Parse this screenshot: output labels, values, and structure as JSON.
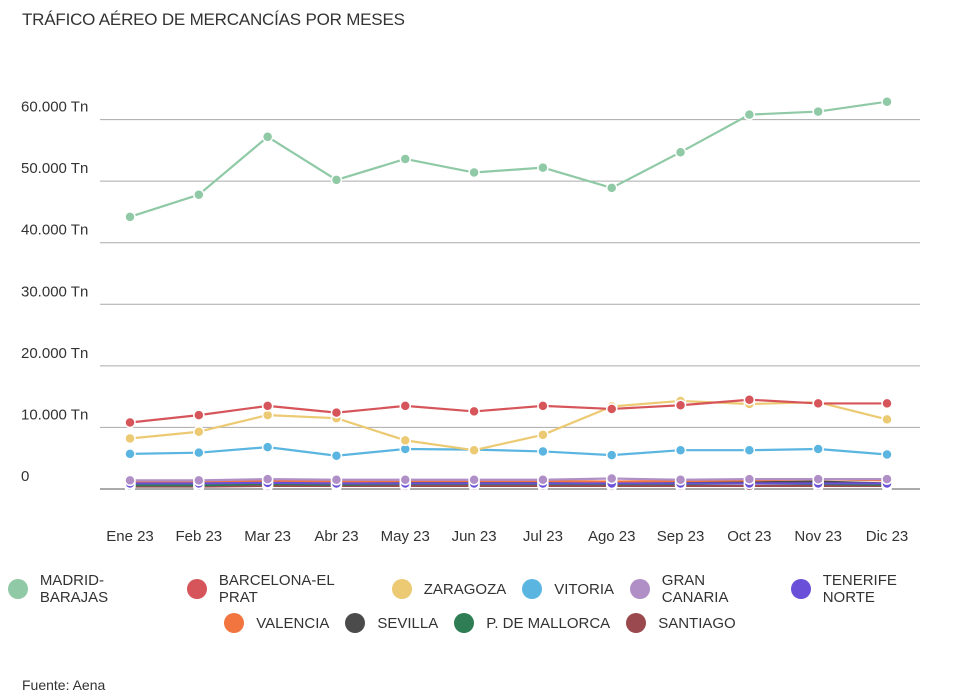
{
  "title": "TRÁFICO AÉREO DE MERCANCÍAS POR MESES",
  "source": "Fuente: Aena",
  "chart_data": {
    "type": "line",
    "title": "TRÁFICO AÉREO DE MERCANCÍAS POR MESES",
    "xlabel": "",
    "ylabel": "",
    "ylim": [
      0,
      70000
    ],
    "yticks": [
      {
        "value": 0,
        "label": "0"
      },
      {
        "value": 10000,
        "label": "10.000 Tn"
      },
      {
        "value": 20000,
        "label": "20.000 Tn"
      },
      {
        "value": 30000,
        "label": "30.000 Tn"
      },
      {
        "value": 40000,
        "label": "40.000 Tn"
      },
      {
        "value": 50000,
        "label": "50.000 Tn"
      },
      {
        "value": 60000,
        "label": "60.000 Tn"
      }
    ],
    "categories": [
      "Ene 23",
      "Feb 23",
      "Mar 23",
      "Abr 23",
      "May 23",
      "Jun 23",
      "Jul 23",
      "Ago 23",
      "Sep 23",
      "Oct 23",
      "Nov 23",
      "Dic 23"
    ],
    "series": [
      {
        "name": "MADRID-BARAJAS",
        "color": "#8fc9a5",
        "values": [
          44200,
          47800,
          57200,
          50200,
          53600,
          51400,
          52200,
          48900,
          54700,
          60800,
          61300,
          62900
        ]
      },
      {
        "name": "BARCELONA-EL PRAT",
        "color": "#d6555a",
        "values": [
          10800,
          12000,
          13500,
          12400,
          13500,
          12600,
          13500,
          13000,
          13600,
          14500,
          13900,
          13900
        ]
      },
      {
        "name": "ZARAGOZA",
        "color": "#ecca73",
        "values": [
          8200,
          9300,
          12000,
          11500,
          7900,
          6300,
          8800,
          13400,
          14300,
          13800,
          14100,
          11300
        ]
      },
      {
        "name": "VITORIA",
        "color": "#5ab5e0",
        "values": [
          5700,
          5900,
          6800,
          5400,
          6500,
          6400,
          6100,
          5500,
          6300,
          6300,
          6500,
          5600
        ]
      },
      {
        "name": "GRAN CANARIA",
        "color": "#b08fc7",
        "values": [
          1400,
          1400,
          1600,
          1500,
          1500,
          1500,
          1500,
          1700,
          1500,
          1600,
          1600,
          1600
        ]
      },
      {
        "name": "TENERIFE NORTE",
        "color": "#6a4fd8",
        "values": [
          900,
          900,
          1000,
          900,
          900,
          900,
          900,
          900,
          900,
          900,
          900,
          900
        ]
      },
      {
        "name": "VALENCIA",
        "color": "#f2743f",
        "values": [
          1100,
          1100,
          1300,
          1200,
          1300,
          1300,
          1300,
          1200,
          1300,
          1400,
          1600,
          1400
        ]
      },
      {
        "name": "SEVILLA",
        "color": "#4b4b4b",
        "values": [
          900,
          900,
          1300,
          1200,
          1100,
          1100,
          1000,
          900,
          1000,
          1100,
          1200,
          900
        ]
      },
      {
        "name": "P. DE MALLORCA",
        "color": "#2e7d54",
        "values": [
          600,
          600,
          800,
          700,
          800,
          800,
          800,
          800,
          800,
          900,
          800,
          700
        ]
      },
      {
        "name": "SANTIAGO",
        "color": "#9a4a4e",
        "values": [
          400,
          400,
          500,
          500,
          500,
          500,
          500,
          500,
          500,
          500,
          500,
          500
        ]
      }
    ],
    "legend_position": "bottom",
    "grid": true
  }
}
